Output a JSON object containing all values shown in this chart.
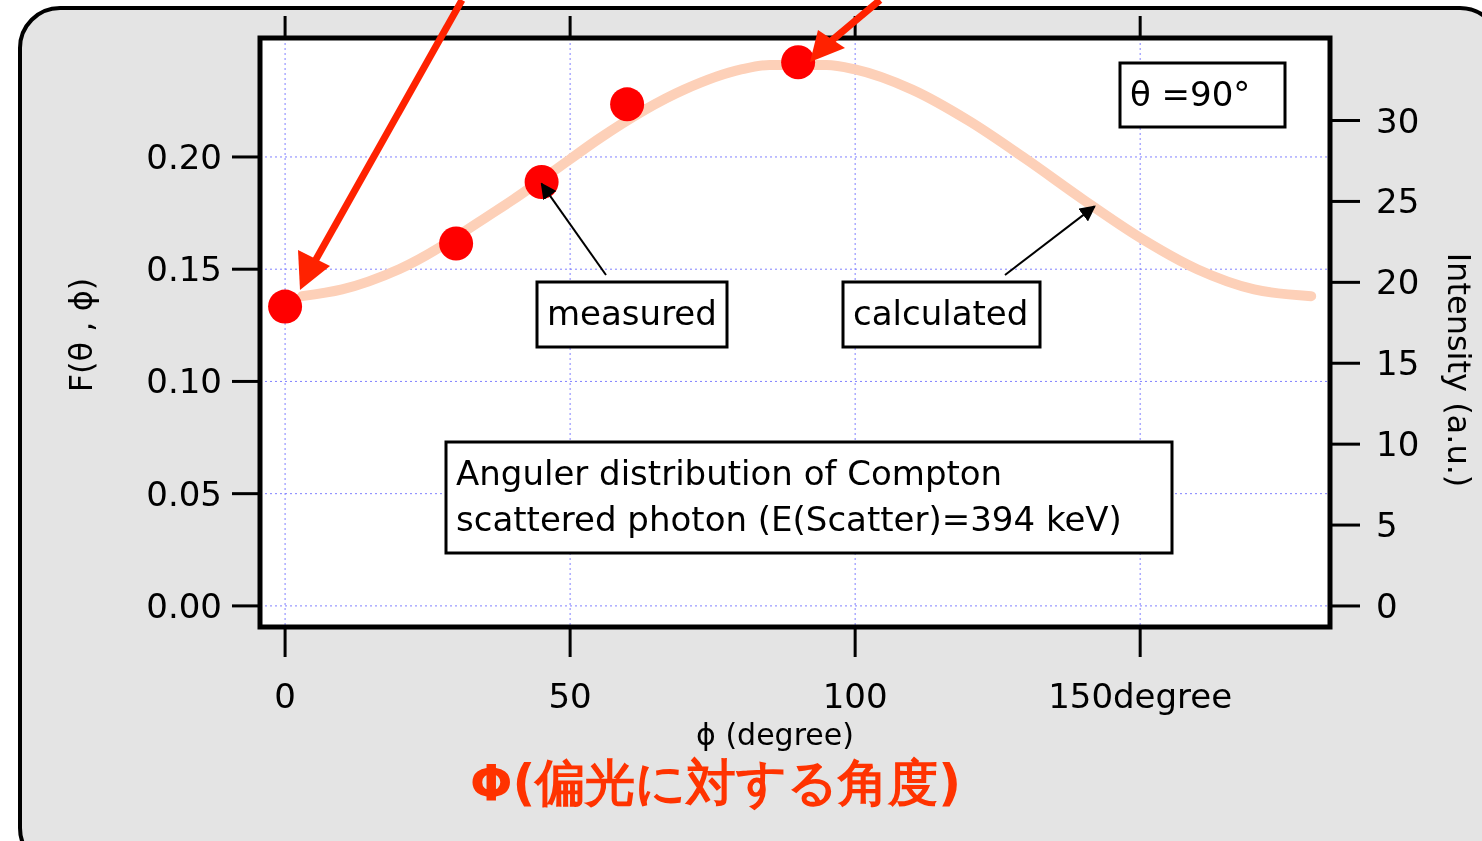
{
  "chart_data": {
    "type": "line",
    "xlabel": "ϕ (degree)",
    "ylabel": "F(θ , ϕ)",
    "y2label": "Intensity (a.u.)",
    "xlim": [
      -4.4,
      183.3
    ],
    "ylim": [
      -0.0094,
      0.253
    ],
    "y2lim": [
      -1.3,
      35.1
    ],
    "xticks": [
      0,
      50,
      100,
      {
        "value": 150,
        "label": "150degree"
      }
    ],
    "yticks": [
      {
        "value": 0,
        "label": "0.00"
      },
      {
        "value": 0.05,
        "label": "0.05"
      },
      {
        "value": 0.1,
        "label": "0.10"
      },
      {
        "value": 0.15,
        "label": "0.15"
      },
      {
        "value": 0.2,
        "label": "0.20"
      }
    ],
    "y2ticks": [
      0,
      5,
      10,
      15,
      20,
      25,
      30
    ],
    "grid": true,
    "series": [
      {
        "color": "#fdd0b8",
        "marker": "none",
        "line_style": "solid",
        "x": [
          3,
          10,
          20,
          37,
          40,
          50,
          55,
          70,
          80,
          85,
          95,
          100,
          110,
          120,
          130,
          140,
          150,
          160,
          170,
          180
        ],
        "values": [
          0.138,
          0.141,
          0.15,
          0.176,
          0.181,
          0.199,
          0.208,
          0.23,
          0.239,
          0.241,
          0.241,
          0.239,
          0.23,
          0.216,
          0.199,
          0.181,
          0.164,
          0.15,
          0.141,
          0.138
        ]
      },
      {
        "type": "scatter",
        "color": "#ff0000",
        "marker": "circle",
        "axis": "y2",
        "x": [
          0,
          30,
          45,
          60,
          90
        ],
        "values": [
          18.5,
          22.4,
          26.2,
          31.0,
          33.6
        ]
      }
    ],
    "annotations": [
      "θ =90°",
      {
        "text": "measured",
        "x": 45,
        "y": 0.188
      },
      {
        "text": "calculated",
        "x": 142,
        "y": 0.178
      },
      "Anguler distribution of Compton\nscattered photon (E(Scatter)=394 keV)",
      "Φ(偏光に対する角度)"
    ]
  }
}
